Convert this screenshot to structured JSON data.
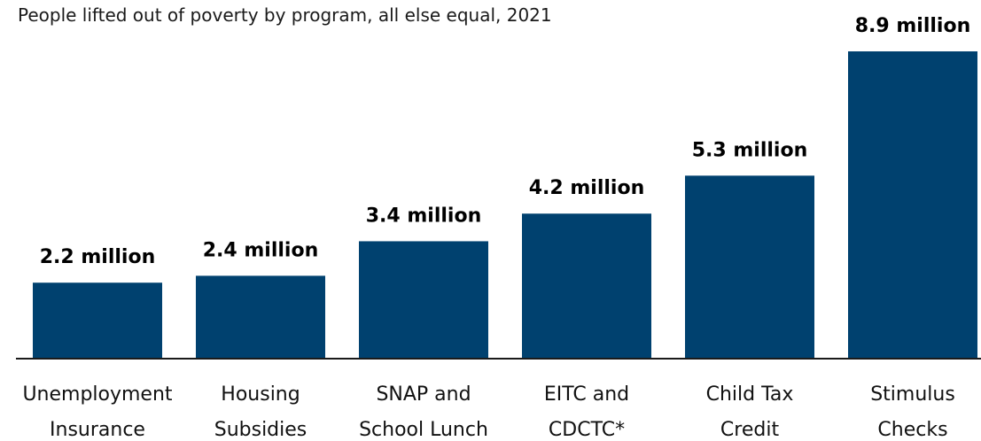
{
  "chart_data": {
    "type": "bar",
    "title": "People lifted out of poverty by program, all else equal, 2021",
    "xlabel": "",
    "ylabel": "",
    "categories": [
      [
        "Unemployment",
        "Insurance"
      ],
      [
        "Housing",
        "Subsidies"
      ],
      [
        "SNAP and",
        "School Lunch"
      ],
      [
        "EITC and",
        "CDCTC*"
      ],
      [
        "Child Tax",
        "Credit"
      ],
      [
        "Stimulus",
        "Checks"
      ]
    ],
    "values": [
      2.2,
      2.4,
      3.4,
      4.2,
      5.3,
      8.9
    ],
    "value_labels": [
      "2.2 million",
      "2.4 million",
      "3.4 million",
      "4.2 million",
      "5.3 million",
      "8.9 million"
    ],
    "unit": "million",
    "ylim": [
      0,
      8.9
    ],
    "grid": false,
    "legend": "none",
    "bar_color": "#00416F",
    "axis_color": "#1a1a1a"
  }
}
